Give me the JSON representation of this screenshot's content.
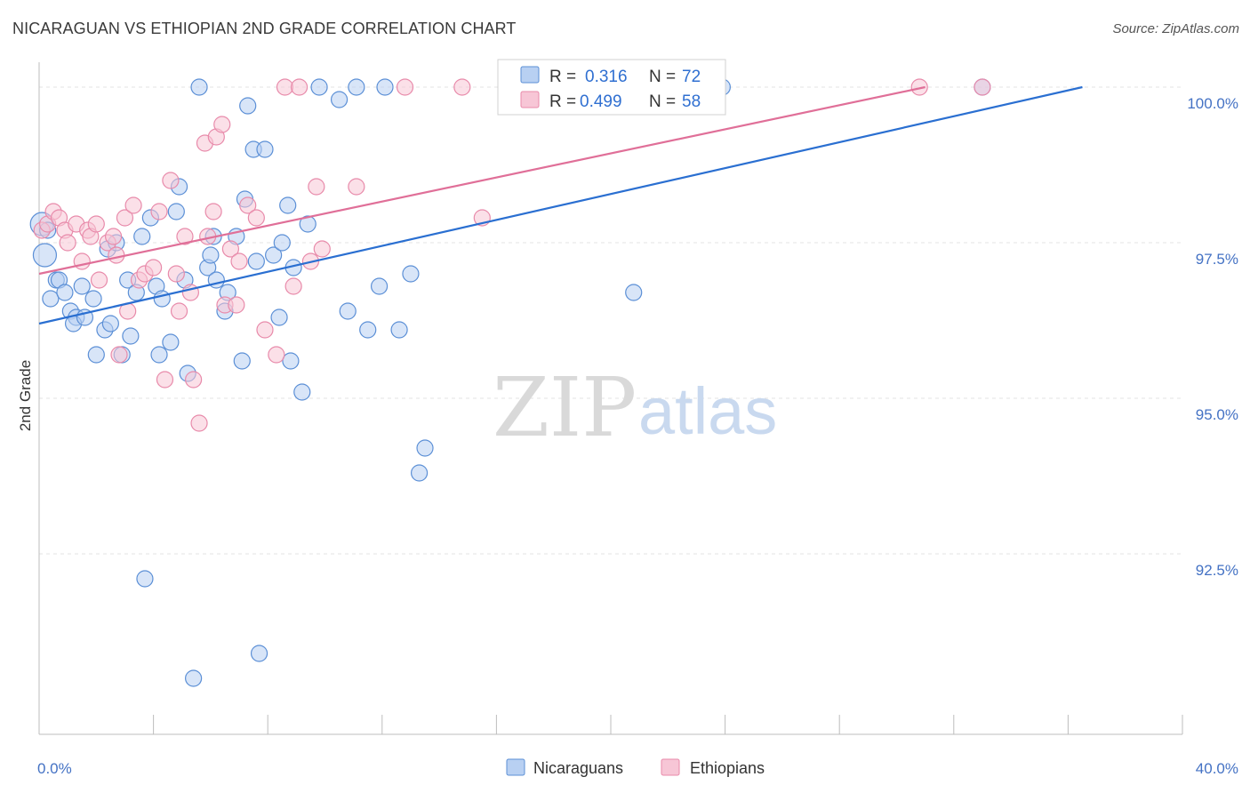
{
  "header": {
    "title": "NICARAGUAN VS ETHIOPIAN 2ND GRADE CORRELATION CHART",
    "source": "Source: ZipAtlas.com"
  },
  "watermark": {
    "zip": "ZIP",
    "atlas": "atlas"
  },
  "colors": {
    "blue": "#5b8fd6",
    "blue_fill": "#b8d0f2",
    "blue_line": "#2a6fd1",
    "pink": "#e88aaa",
    "pink_fill": "#f7c6d6",
    "pink_line": "#e06f98",
    "grid": "#e3e3e3",
    "tick_text": "#4472c4"
  },
  "legend": {
    "rows": [
      {
        "r_label": "R =",
        "r_value": "0.316",
        "n_label": "N =",
        "n_value": "72"
      },
      {
        "r_label": "R =",
        "r_value": "0.499",
        "n_label": "N =",
        "n_value": "58"
      }
    ]
  },
  "bottom_legend": {
    "items": [
      "Nicaraguans",
      "Ethiopians"
    ]
  },
  "chart_data": {
    "type": "scatter",
    "title": "NICARAGUAN VS ETHIOPIAN 2ND GRADE CORRELATION CHART",
    "xlabel": "",
    "ylabel": "2nd Grade",
    "xlim": [
      0,
      40
    ],
    "ylim": [
      89.6,
      100.4
    ],
    "x_tick_labels": [
      "0.0%",
      "40.0%"
    ],
    "y_ticks": [
      92.5,
      95.0,
      97.5,
      100.0
    ],
    "y_tick_labels": [
      "92.5%",
      "95.0%",
      "97.5%",
      "100.0%"
    ],
    "grid": true,
    "legend_position": "top-center",
    "series": [
      {
        "name": "Nicaraguans",
        "r": 0.316,
        "n": 72,
        "trend": {
          "x": [
            0,
            36.5
          ],
          "y": [
            96.2,
            100.0
          ]
        },
        "points": [
          [
            0.1,
            97.8
          ],
          [
            0.2,
            97.3
          ],
          [
            0.4,
            96.6
          ],
          [
            0.6,
            96.9
          ],
          [
            0.7,
            96.9
          ],
          [
            0.9,
            96.7
          ],
          [
            1.1,
            96.4
          ],
          [
            1.3,
            96.3
          ],
          [
            1.2,
            96.2
          ],
          [
            1.6,
            96.3
          ],
          [
            1.5,
            96.8
          ],
          [
            1.9,
            96.6
          ],
          [
            2.0,
            95.7
          ],
          [
            2.3,
            96.1
          ],
          [
            2.5,
            96.2
          ],
          [
            2.4,
            97.4
          ],
          [
            2.7,
            97.5
          ],
          [
            2.9,
            95.7
          ],
          [
            3.1,
            96.9
          ],
          [
            3.2,
            96.0
          ],
          [
            3.4,
            96.7
          ],
          [
            3.6,
            97.6
          ],
          [
            3.9,
            97.9
          ],
          [
            4.1,
            96.8
          ],
          [
            4.3,
            96.6
          ],
          [
            4.2,
            95.7
          ],
          [
            4.6,
            95.9
          ],
          [
            4.8,
            98.0
          ],
          [
            4.9,
            98.4
          ],
          [
            5.1,
            96.9
          ],
          [
            5.2,
            95.4
          ],
          [
            5.6,
            100.0
          ],
          [
            5.9,
            97.1
          ],
          [
            6.0,
            97.3
          ],
          [
            6.1,
            97.6
          ],
          [
            6.2,
            96.9
          ],
          [
            6.5,
            96.4
          ],
          [
            6.6,
            96.7
          ],
          [
            6.9,
            97.6
          ],
          [
            7.1,
            95.6
          ],
          [
            7.2,
            98.2
          ],
          [
            7.3,
            99.7
          ],
          [
            7.5,
            99.0
          ],
          [
            7.6,
            97.2
          ],
          [
            7.9,
            99.0
          ],
          [
            8.2,
            97.3
          ],
          [
            8.4,
            96.3
          ],
          [
            8.5,
            97.5
          ],
          [
            8.7,
            98.1
          ],
          [
            8.8,
            95.6
          ],
          [
            8.9,
            97.1
          ],
          [
            9.2,
            95.1
          ],
          [
            9.4,
            97.8
          ],
          [
            9.8,
            100.0
          ],
          [
            10.5,
            99.8
          ],
          [
            10.8,
            96.4
          ],
          [
            11.1,
            100.0
          ],
          [
            11.5,
            96.1
          ],
          [
            11.9,
            96.8
          ],
          [
            12.1,
            100.0
          ],
          [
            12.6,
            96.1
          ],
          [
            13.0,
            97.0
          ],
          [
            13.3,
            93.8
          ],
          [
            13.5,
            94.2
          ],
          [
            17.3,
            100.0
          ],
          [
            20.8,
            96.7
          ],
          [
            23.9,
            100.0
          ],
          [
            33.0,
            100.0
          ],
          [
            3.7,
            92.1
          ],
          [
            7.7,
            90.9
          ],
          [
            5.4,
            90.5
          ],
          [
            0.3,
            97.7
          ]
        ]
      },
      {
        "name": "Ethiopians",
        "r": 0.499,
        "n": 58,
        "trend": {
          "x": [
            0,
            31.0
          ],
          "y": [
            97.0,
            100.0
          ]
        },
        "points": [
          [
            0.1,
            97.7
          ],
          [
            0.3,
            97.8
          ],
          [
            0.5,
            98.0
          ],
          [
            0.7,
            97.9
          ],
          [
            0.9,
            97.7
          ],
          [
            1.0,
            97.5
          ],
          [
            1.3,
            97.8
          ],
          [
            1.5,
            97.2
          ],
          [
            1.7,
            97.7
          ],
          [
            1.8,
            97.6
          ],
          [
            2.0,
            97.8
          ],
          [
            2.1,
            96.9
          ],
          [
            2.4,
            97.5
          ],
          [
            2.6,
            97.6
          ],
          [
            2.7,
            97.3
          ],
          [
            2.8,
            95.7
          ],
          [
            3.0,
            97.9
          ],
          [
            3.1,
            96.4
          ],
          [
            3.3,
            98.1
          ],
          [
            3.5,
            96.9
          ],
          [
            3.7,
            97.0
          ],
          [
            4.0,
            97.1
          ],
          [
            4.2,
            98.0
          ],
          [
            4.4,
            95.3
          ],
          [
            4.6,
            98.5
          ],
          [
            4.8,
            97.0
          ],
          [
            4.9,
            96.4
          ],
          [
            5.1,
            97.6
          ],
          [
            5.3,
            96.7
          ],
          [
            5.4,
            95.3
          ],
          [
            5.6,
            94.6
          ],
          [
            5.8,
            99.1
          ],
          [
            5.9,
            97.6
          ],
          [
            6.1,
            98.0
          ],
          [
            6.2,
            99.2
          ],
          [
            6.4,
            99.4
          ],
          [
            6.5,
            96.5
          ],
          [
            6.7,
            97.4
          ],
          [
            6.9,
            96.5
          ],
          [
            7.0,
            97.2
          ],
          [
            7.3,
            98.1
          ],
          [
            7.6,
            97.9
          ],
          [
            7.9,
            96.1
          ],
          [
            8.3,
            95.7
          ],
          [
            8.6,
            100.0
          ],
          [
            8.9,
            96.8
          ],
          [
            9.1,
            100.0
          ],
          [
            9.5,
            97.2
          ],
          [
            9.7,
            98.4
          ],
          [
            9.9,
            97.4
          ],
          [
            11.1,
            98.4
          ],
          [
            12.8,
            100.0
          ],
          [
            14.8,
            100.0
          ],
          [
            15.5,
            97.9
          ],
          [
            18.0,
            100.0
          ],
          [
            21.0,
            100.0
          ],
          [
            30.8,
            100.0
          ],
          [
            33.0,
            100.0
          ]
        ]
      }
    ]
  }
}
